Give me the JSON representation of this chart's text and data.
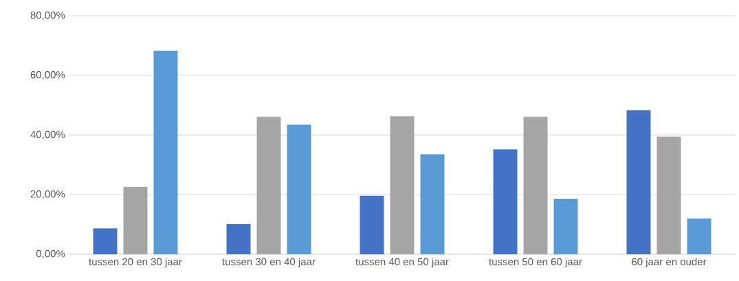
{
  "chart_data": {
    "type": "bar",
    "categories": [
      "tussen 20 en 30 jaar",
      "tussen 30 en 40 jaar",
      "tussen 40 en 50 jaar",
      "tussen 50 en 60 jaar",
      "60 jaar en ouder"
    ],
    "series": [
      {
        "color": "#4472c4",
        "values": [
          8.7,
          10.1,
          19.6,
          35.2,
          48.3
        ]
      },
      {
        "color": "#a5a5a5",
        "values": [
          22.6,
          46.1,
          46.3,
          46.1,
          39.4
        ]
      },
      {
        "color": "#5b9bd5",
        "values": [
          68.3,
          43.5,
          33.5,
          18.6,
          12.0
        ]
      }
    ],
    "ylim": [
      0,
      80
    ],
    "yticks": [
      {
        "value": 0,
        "label": "0,00%"
      },
      {
        "value": 20,
        "label": "20,00%"
      },
      {
        "value": 40,
        "label": "40,00%"
      },
      {
        "value": 60,
        "label": "60,00%"
      },
      {
        "value": 80,
        "label": "80,00%"
      }
    ],
    "grid": "y"
  }
}
